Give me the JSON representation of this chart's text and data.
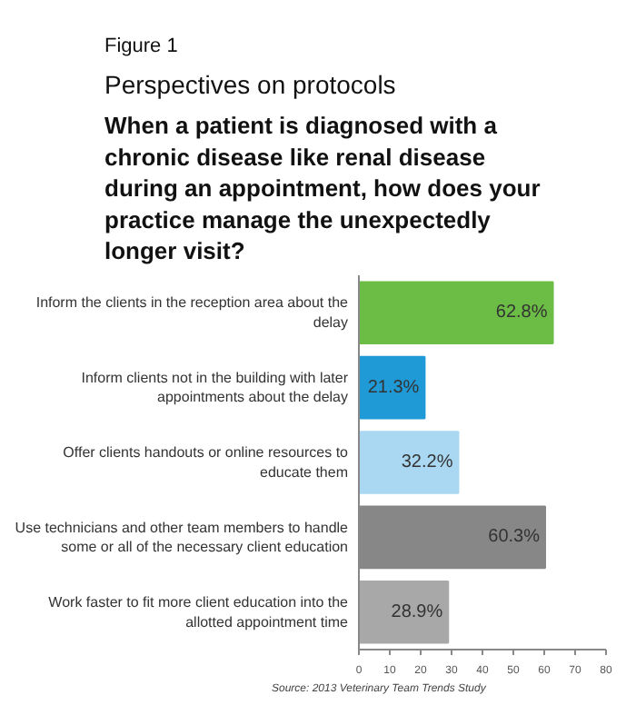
{
  "chart_data": {
    "type": "bar",
    "orientation": "horizontal",
    "title": "Perspectives on protocols",
    "subtitle": "When a patient is diagnosed with a chronic disease like renal disease during an appointment, how does your practice manage the unexpectedly longer visit?",
    "categories": [
      "Inform the clients in the reception area about the delay",
      "Inform clients not in the building with later appointments about the delay",
      "Offer clients handouts or online resources to educate them",
      "Use technicians and other team members to handle some or all of the necessary client education",
      "Work faster to fit more client education into the allotted appointment time"
    ],
    "values": [
      62.8,
      21.3,
      32.2,
      60.3,
      28.9
    ],
    "colors": [
      "#6cbd45",
      "#1f9ad6",
      "#aad8f3",
      "#878787",
      "#a8a8a8"
    ],
    "value_labels": [
      "62.8%",
      "21.3%",
      "32.2%",
      "60.3%",
      "28.9%"
    ],
    "xlim": [
      0,
      80
    ],
    "xticks": [
      0,
      10,
      20,
      30,
      40,
      50,
      60,
      70,
      80
    ],
    "grid": false,
    "annotations": [
      "Figure 1",
      "Source: 2013 Veterinary Team Trends Study"
    ]
  }
}
